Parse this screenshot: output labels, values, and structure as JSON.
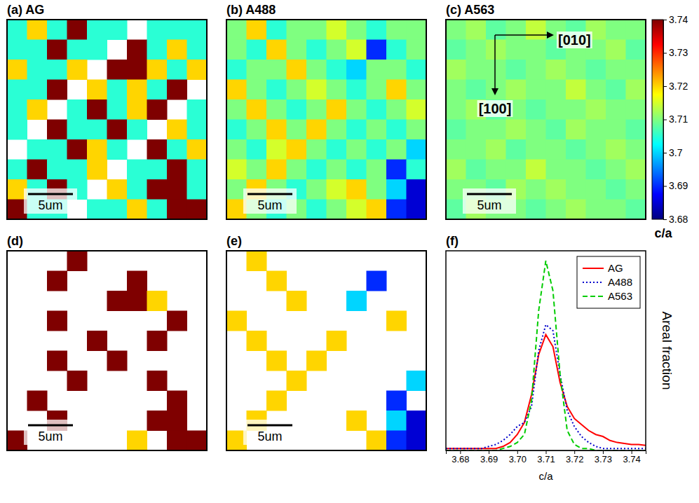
{
  "chart_data": [
    {
      "type": "heatmap",
      "title": "(a) AG",
      "scale_label": "5um",
      "tick_labels": false,
      "cells": [
        [
          3.705,
          3.72,
          3.705,
          3.74,
          3.705,
          3.705,
          null,
          3.705,
          3.705,
          3.705
        ],
        [
          3.705,
          3.705,
          3.74,
          3.705,
          3.705,
          null,
          3.74,
          3.705,
          3.72,
          3.705
        ],
        [
          3.72,
          3.705,
          3.705,
          3.72,
          null,
          3.74,
          3.74,
          3.72,
          3.705,
          3.72
        ],
        [
          3.705,
          3.705,
          3.74,
          null,
          3.72,
          3.705,
          3.72,
          3.705,
          3.74,
          null
        ],
        [
          3.705,
          3.72,
          null,
          3.705,
          3.74,
          3.705,
          3.72,
          3.74,
          null,
          3.705
        ],
        [
          3.705,
          null,
          3.74,
          3.705,
          3.705,
          3.74,
          3.705,
          null,
          3.72,
          3.705
        ],
        [
          null,
          3.705,
          3.705,
          3.74,
          3.72,
          3.705,
          null,
          3.74,
          3.705,
          3.72
        ],
        [
          3.705,
          3.74,
          3.705,
          3.705,
          3.72,
          null,
          3.705,
          3.705,
          3.74,
          3.705
        ],
        [
          3.72,
          3.705,
          3.74,
          3.705,
          null,
          3.72,
          3.705,
          3.74,
          3.74,
          3.705
        ],
        [
          3.74,
          3.705,
          3.705,
          null,
          3.705,
          3.705,
          3.72,
          3.705,
          3.74,
          3.74
        ]
      ]
    },
    {
      "type": "heatmap",
      "title": "(b) A488",
      "scale_label": "5um",
      "tick_labels": false,
      "cells": [
        [
          3.71,
          3.72,
          3.705,
          3.71,
          3.71,
          3.715,
          3.71,
          3.705,
          3.71,
          3.71
        ],
        [
          3.71,
          3.705,
          3.72,
          3.71,
          3.705,
          3.71,
          3.715,
          3.69,
          3.705,
          3.71
        ],
        [
          3.705,
          3.71,
          3.71,
          3.72,
          3.71,
          3.705,
          3.7,
          3.71,
          3.71,
          3.705
        ],
        [
          3.72,
          3.71,
          3.705,
          3.71,
          3.715,
          3.71,
          3.705,
          3.71,
          3.72,
          3.71
        ],
        [
          3.71,
          3.72,
          3.71,
          3.705,
          3.71,
          3.72,
          3.71,
          3.705,
          3.71,
          3.715
        ],
        [
          3.705,
          3.71,
          3.72,
          3.71,
          3.72,
          3.71,
          3.705,
          3.71,
          3.705,
          3.71
        ],
        [
          3.71,
          3.705,
          3.715,
          3.72,
          3.71,
          3.705,
          3.71,
          3.705,
          3.71,
          3.7
        ],
        [
          3.715,
          3.71,
          3.72,
          3.71,
          3.705,
          3.71,
          3.705,
          3.71,
          3.69,
          3.705
        ],
        [
          3.71,
          3.72,
          3.71,
          3.705,
          3.71,
          3.715,
          3.72,
          3.71,
          3.7,
          3.685
        ],
        [
          3.72,
          3.71,
          3.705,
          3.71,
          3.705,
          3.71,
          3.715,
          3.72,
          3.69,
          3.685
        ]
      ]
    },
    {
      "type": "heatmap",
      "title": "(c) A563",
      "scale_label": "5um",
      "tick_labels": false,
      "annotations": [
        "[010]",
        "[100]"
      ],
      "cells": [
        [
          3.71,
          3.712,
          3.708,
          3.71,
          3.714,
          3.71,
          3.708,
          3.712,
          3.71,
          3.71
        ],
        [
          3.708,
          3.71,
          3.712,
          3.71,
          3.71,
          3.708,
          3.71,
          3.71,
          3.712,
          3.708
        ],
        [
          3.712,
          3.71,
          3.71,
          3.708,
          3.71,
          3.712,
          3.71,
          3.708,
          3.71,
          3.71
        ],
        [
          3.71,
          3.708,
          3.71,
          3.712,
          3.71,
          3.71,
          3.714,
          3.71,
          3.708,
          3.712
        ],
        [
          3.71,
          3.712,
          3.708,
          3.71,
          3.708,
          3.71,
          3.71,
          3.712,
          3.71,
          3.71
        ],
        [
          3.708,
          3.71,
          3.71,
          3.712,
          3.71,
          3.708,
          3.712,
          3.71,
          3.71,
          3.708
        ],
        [
          3.71,
          3.71,
          3.712,
          3.708,
          3.71,
          3.71,
          3.708,
          3.71,
          3.712,
          3.71
        ],
        [
          3.712,
          3.708,
          3.71,
          3.71,
          3.714,
          3.71,
          3.71,
          3.708,
          3.71,
          3.712
        ],
        [
          3.71,
          3.71,
          3.708,
          3.712,
          3.71,
          3.712,
          3.71,
          3.71,
          3.708,
          3.71
        ],
        [
          3.708,
          3.712,
          3.71,
          3.71,
          3.708,
          3.71,
          3.712,
          3.71,
          3.71,
          3.708
        ]
      ]
    },
    {
      "type": "heatmap",
      "title": "(d)",
      "scale_label": "5um",
      "tick_labels": false,
      "cells": [
        [
          null,
          null,
          null,
          3.74,
          null,
          null,
          null,
          null,
          null,
          null
        ],
        [
          null,
          null,
          3.74,
          null,
          null,
          null,
          3.74,
          null,
          null,
          null
        ],
        [
          null,
          null,
          null,
          null,
          null,
          3.74,
          3.74,
          3.72,
          null,
          null
        ],
        [
          null,
          null,
          3.74,
          null,
          null,
          null,
          null,
          null,
          3.74,
          null
        ],
        [
          null,
          null,
          null,
          null,
          3.74,
          null,
          null,
          3.74,
          null,
          null
        ],
        [
          null,
          null,
          3.74,
          null,
          null,
          3.74,
          null,
          null,
          null,
          null
        ],
        [
          null,
          null,
          null,
          3.74,
          null,
          null,
          null,
          3.74,
          null,
          null
        ],
        [
          null,
          3.74,
          null,
          null,
          null,
          null,
          null,
          null,
          3.74,
          null
        ],
        [
          null,
          null,
          3.74,
          null,
          null,
          null,
          null,
          3.74,
          3.74,
          null
        ],
        [
          3.74,
          null,
          null,
          null,
          null,
          null,
          3.72,
          null,
          3.74,
          3.74
        ]
      ]
    },
    {
      "type": "heatmap",
      "title": "(e)",
      "scale_label": "5um",
      "tick_labels": false,
      "cells": [
        [
          null,
          3.72,
          null,
          null,
          null,
          null,
          null,
          null,
          null,
          null
        ],
        [
          null,
          null,
          3.72,
          null,
          null,
          null,
          null,
          3.69,
          null,
          null
        ],
        [
          null,
          null,
          null,
          3.72,
          null,
          null,
          3.7,
          null,
          null,
          null
        ],
        [
          3.72,
          null,
          null,
          null,
          null,
          null,
          null,
          null,
          3.72,
          null
        ],
        [
          null,
          3.72,
          null,
          null,
          null,
          3.72,
          null,
          null,
          null,
          null
        ],
        [
          null,
          null,
          3.72,
          null,
          3.72,
          null,
          null,
          null,
          null,
          null
        ],
        [
          null,
          null,
          null,
          3.72,
          null,
          null,
          null,
          null,
          null,
          3.7
        ],
        [
          null,
          null,
          3.72,
          null,
          null,
          null,
          null,
          null,
          3.69,
          null
        ],
        [
          null,
          3.72,
          null,
          null,
          null,
          null,
          3.72,
          null,
          3.7,
          3.685
        ],
        [
          3.72,
          null,
          null,
          null,
          null,
          null,
          null,
          3.72,
          3.69,
          3.685
        ]
      ]
    },
    {
      "type": "colorbar",
      "ylabel": "c/a",
      "ylim": [
        3.68,
        3.74
      ],
      "yticks": [
        3.68,
        3.69,
        3.7,
        3.71,
        3.72,
        3.73,
        3.74
      ]
    },
    {
      "type": "line",
      "title": "(f)",
      "xlabel": "c/a",
      "ylabel": "Areal fraction",
      "xlim": [
        3.675,
        3.745
      ],
      "xticks": [
        3.68,
        3.69,
        {
          "value": 3.7,
          "label": "3.70"
        },
        3.71,
        3.72,
        3.73,
        3.74
      ],
      "ylim": [
        0,
        1
      ],
      "tick_labels": "x",
      "legend": "upper right",
      "x": [
        3.675,
        3.6775,
        3.68,
        3.6825,
        3.685,
        3.6875,
        3.69,
        3.6925,
        3.695,
        3.6975,
        3.7,
        3.7025,
        3.705,
        3.7075,
        3.71,
        3.7125,
        3.715,
        3.7175,
        3.72,
        3.7225,
        3.725,
        3.7275,
        3.73,
        3.7325,
        3.735,
        3.7375,
        3.74,
        3.7425,
        3.745
      ],
      "series": [
        {
          "name": "AG",
          "color": "#ff0000",
          "line_style": "solid",
          "values": [
            0.01,
            0.01,
            0.01,
            0.01,
            0.01,
            0.01,
            0.01,
            0.01,
            0.02,
            0.04,
            0.08,
            0.14,
            0.28,
            0.48,
            0.58,
            0.52,
            0.34,
            0.22,
            0.16,
            0.13,
            0.1,
            0.08,
            0.07,
            0.05,
            0.04,
            0.035,
            0.03,
            0.03,
            0.025
          ]
        },
        {
          "name": "A488",
          "color": "#0000cc",
          "line_style": "dotted",
          "values": [
            0.01,
            0.01,
            0.01,
            0.01,
            0.01,
            0.01,
            0.02,
            0.03,
            0.05,
            0.08,
            0.12,
            0.14,
            0.22,
            0.5,
            0.63,
            0.6,
            0.38,
            0.2,
            0.12,
            0.07,
            0.04,
            0.02,
            0.01,
            0.01,
            0.01,
            0.01,
            0.01,
            0.01,
            0.01
          ]
        },
        {
          "name": "A563",
          "color": "#00cc00",
          "line_style": "dashed",
          "values": [
            0,
            0,
            0,
            0,
            0,
            0,
            0,
            0,
            0.01,
            0.02,
            0.04,
            0.08,
            0.25,
            0.7,
            0.95,
            0.8,
            0.38,
            0.1,
            0.03,
            0.01,
            0.01,
            0,
            0,
            0,
            0,
            0,
            0,
            0,
            0
          ]
        }
      ]
    }
  ]
}
